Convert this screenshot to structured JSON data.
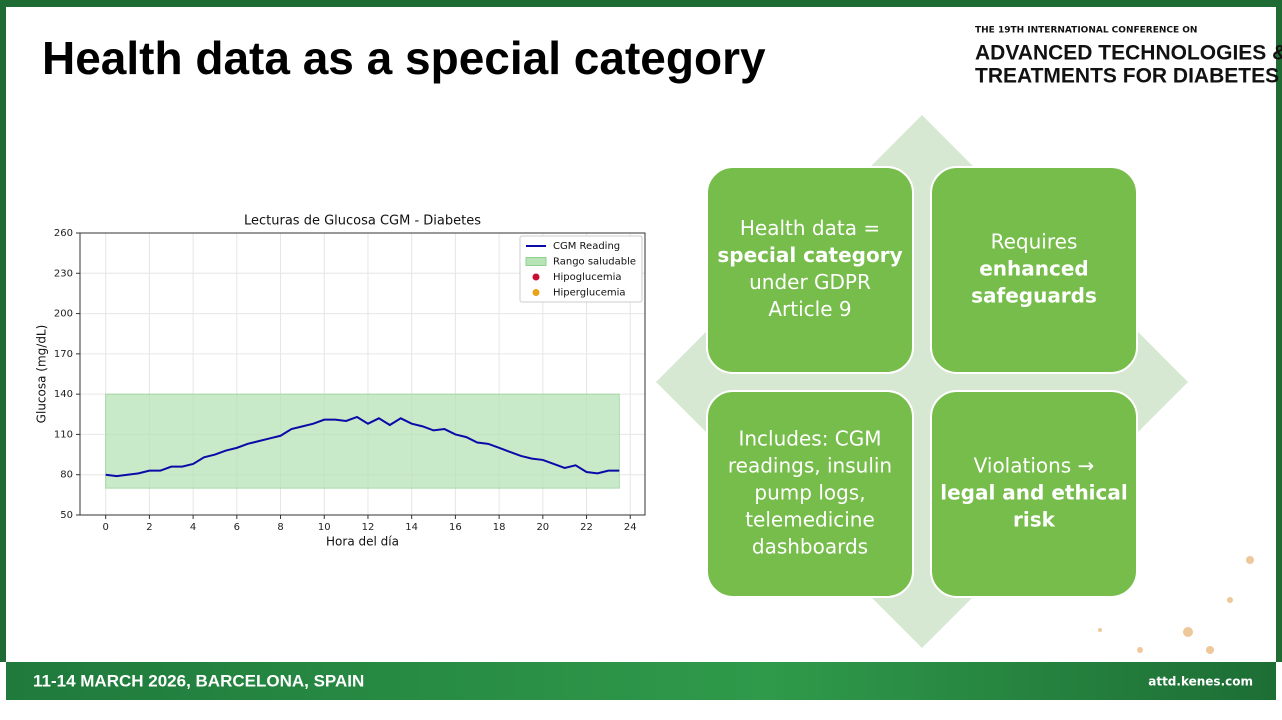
{
  "header": {
    "title": "Health data as a special category",
    "logo": [
      "THE 19TH INTERNATIONAL CONFERENCE ON",
      "ADVANCED TECHNOLOGIES &",
      "TREATMENTS FOR DIABETES"
    ]
  },
  "chart_data": {
    "type": "line",
    "title": "Lecturas de Glucosa CGM - Diabetes",
    "x_label": "Hora del día",
    "y_label": "Glucosa (mg/dL)",
    "x": [
      0,
      0.5,
      1,
      1.5,
      2,
      2.5,
      3,
      3.5,
      4,
      4.5,
      5,
      5.5,
      6,
      6.5,
      7,
      7.5,
      8,
      8.5,
      9,
      9.5,
      10,
      10.5,
      11,
      11.5,
      12,
      12.5,
      13,
      13.5,
      14,
      14.5,
      15,
      15.5,
      16,
      16.5,
      17,
      17.5,
      18,
      18.5,
      19,
      19.5,
      20,
      20.5,
      21,
      21.5,
      22,
      22.5,
      23,
      23.5
    ],
    "series": [
      {
        "name": "CGM Reading",
        "color": "#0a0aa8",
        "values": [
          80,
          79,
          80,
          81,
          83,
          83,
          86,
          86,
          88,
          93,
          95,
          98,
          100,
          103,
          105,
          107,
          109,
          114,
          116,
          118,
          121,
          121,
          120,
          123,
          118,
          122,
          117,
          122,
          118,
          116,
          113,
          114,
          110,
          108,
          104,
          103,
          100,
          97,
          94,
          92,
          91,
          88,
          85,
          87,
          82,
          81,
          83,
          83
        ]
      }
    ],
    "band": {
      "name": "Rango saludable",
      "color": "#b7e3b7",
      "x": [
        0,
        23.5
      ],
      "y": [
        70,
        140
      ]
    },
    "markers": [
      {
        "name": "Hipoglucemia",
        "color": "#c8102e"
      },
      {
        "name": "Hiperglucemia",
        "color": "#e8a317"
      }
    ],
    "xlim": [
      -1.175,
      24.675
    ],
    "ylim": [
      50,
      260
    ],
    "xticks": [
      0,
      2,
      4,
      6,
      8,
      10,
      12,
      14,
      16,
      18,
      20,
      22,
      24
    ],
    "yticks": [
      50,
      80,
      110,
      140,
      170,
      200,
      230,
      260
    ],
    "grid": true,
    "legend": "upper right"
  },
  "boxes": [
    {
      "lines": [
        {
          "text": "Health data =",
          "bold": false
        },
        {
          "text": "special category",
          "bold": true
        },
        {
          "text": "under GDPR",
          "bold": false
        },
        {
          "text": "Article 9",
          "bold": false
        }
      ]
    },
    {
      "lines": [
        {
          "text": "Requires",
          "bold": false
        },
        {
          "text": "enhanced",
          "bold": true
        },
        {
          "text": "safeguards",
          "bold": true
        }
      ]
    },
    {
      "lines": [
        {
          "text": "Includes: CGM",
          "bold": false
        },
        {
          "text": "readings, insulin",
          "bold": false
        },
        {
          "text": "pump logs,",
          "bold": false
        },
        {
          "text": "telemedicine",
          "bold": false
        },
        {
          "text": "dashboards",
          "bold": false
        }
      ]
    },
    {
      "lines": [
        {
          "text": "Violations →",
          "bold": false
        },
        {
          "text": "legal and ethical",
          "bold": true
        },
        {
          "text": "risk",
          "bold": true
        }
      ]
    }
  ],
  "footer": {
    "event": "11-14 MARCH 2026, BARCELONA, SPAIN",
    "url": "attd.kenes.com"
  }
}
